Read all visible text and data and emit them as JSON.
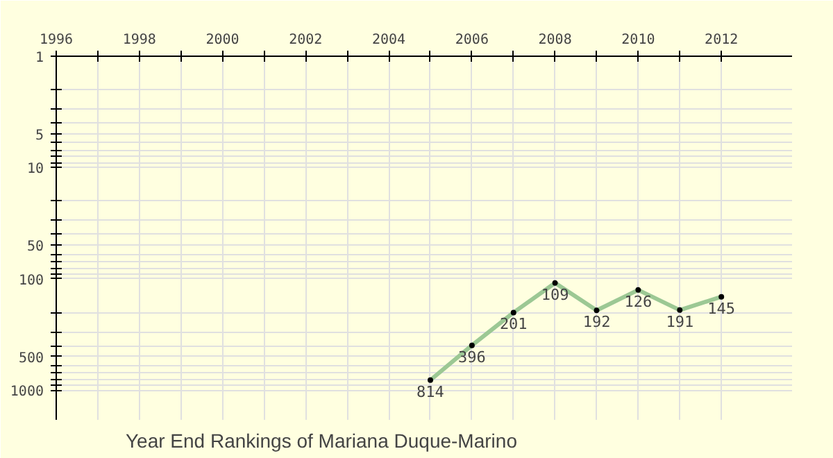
{
  "chart_data": {
    "type": "line",
    "title": "Year End Rankings of  Mariana Duque-Marino",
    "x": [
      2005,
      2006,
      2007,
      2008,
      2009,
      2010,
      2011,
      2012
    ],
    "series": [
      {
        "color": "#9cc894",
        "values": [
          814,
          396,
          201,
          109,
          192,
          126,
          191,
          145
        ]
      }
    ],
    "data_labels": true,
    "marker": "circle",
    "log": "y",
    "grid": true,
    "xlim": [
      1996,
      2013.7
    ],
    "ylim": [
      1850,
      1
    ],
    "xticks": [
      1996,
      {
        "value": 1997,
        "label": null
      },
      1998,
      {
        "value": 1999,
        "label": null
      },
      2000,
      {
        "value": 2001,
        "label": null
      },
      2002,
      {
        "value": 2003,
        "label": null
      },
      2004,
      {
        "value": 2005,
        "label": null
      },
      2006,
      {
        "value": 2007,
        "label": null
      },
      2008,
      {
        "value": 2009,
        "label": null
      },
      2010,
      {
        "value": 2011,
        "label": null
      },
      2012
    ],
    "yticks": [
      1,
      {
        "value": 2,
        "label": null
      },
      {
        "value": 3,
        "label": null
      },
      {
        "value": 4,
        "label": null
      },
      5,
      {
        "value": 6,
        "label": null
      },
      {
        "value": 7,
        "label": null
      },
      {
        "value": 8,
        "label": null
      },
      {
        "value": 9,
        "label": null
      },
      10,
      {
        "value": 20,
        "label": null
      },
      {
        "value": 30,
        "label": null
      },
      {
        "value": 40,
        "label": null
      },
      50,
      {
        "value": 60,
        "label": null
      },
      {
        "value": 70,
        "label": null
      },
      {
        "value": 80,
        "label": null
      },
      {
        "value": 90,
        "label": null
      },
      100,
      {
        "value": 200,
        "label": null
      },
      {
        "value": 300,
        "label": null
      },
      {
        "value": 400,
        "label": null
      },
      500,
      {
        "value": 600,
        "label": null
      },
      {
        "value": 700,
        "label": null
      },
      {
        "value": 800,
        "label": null
      },
      {
        "value": 900,
        "label": null
      },
      1000
    ]
  }
}
